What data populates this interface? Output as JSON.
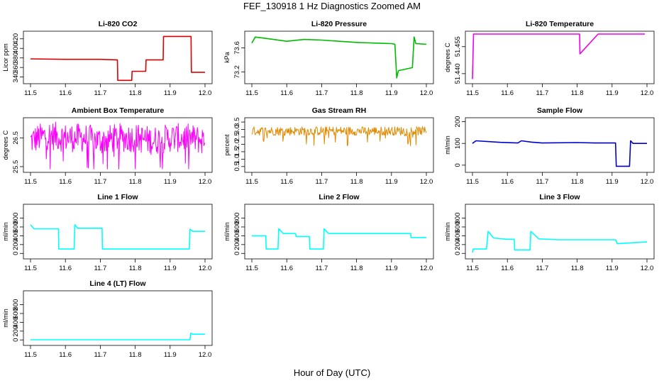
{
  "figure": {
    "title": "FEF_130918  1 Hz Diagnostics Zoomed AM",
    "xlabel": "Hour of Day (UTC)"
  },
  "chart_data": [
    {
      "type": "line",
      "title": "Li-820 CO2",
      "ylabel": "Licor ppm",
      "color": "#dd0000",
      "xlim": [
        11.5,
        12.0
      ],
      "ylim": [
        332,
        430
      ],
      "yticks": [
        "340",
        "360",
        "380",
        "400",
        "420"
      ],
      "xticks": [
        "11.5",
        "11.6",
        "11.7",
        "11.8",
        "11.9",
        "12.0"
      ],
      "x": [
        11.5,
        11.6,
        11.7,
        11.749,
        11.75,
        11.79,
        11.791,
        11.83,
        11.831,
        11.88,
        11.881,
        11.96,
        11.961,
        12.0
      ],
      "y": [
        378,
        377,
        377,
        376,
        333,
        333,
        352,
        352,
        376,
        376,
        425,
        425,
        350,
        350
      ]
    },
    {
      "type": "line",
      "title": "Li-820 Pressure",
      "ylabel": "kPa",
      "color": "#00bb00",
      "xlim": [
        11.5,
        12.0
      ],
      "ylim": [
        73.05,
        73.83
      ],
      "yticks": [
        "73.2",
        "73.6"
      ],
      "xticks": [
        "11.5",
        "11.6",
        "11.7",
        "11.8",
        "11.9",
        "12.0"
      ],
      "x": [
        11.5,
        11.51,
        11.55,
        11.6,
        11.65,
        11.7,
        11.75,
        11.8,
        11.85,
        11.9,
        11.91,
        11.915,
        11.92,
        11.96,
        11.965,
        11.97,
        12.0
      ],
      "y": [
        73.68,
        73.78,
        73.75,
        73.71,
        73.74,
        73.73,
        73.71,
        73.69,
        73.68,
        73.67,
        73.66,
        73.1,
        73.22,
        73.27,
        73.78,
        73.67,
        73.66
      ]
    },
    {
      "type": "line",
      "title": "Li-820 Temperature",
      "ylabel": "degrees C",
      "color": "#ee00ee",
      "xlim": [
        11.5,
        12.0
      ],
      "ylim": [
        51.436,
        51.462
      ],
      "yticks": [
        "51.440",
        "51.455"
      ],
      "xticks": [
        "11.5",
        "11.6",
        "11.7",
        "11.8",
        "11.9",
        "12.0"
      ],
      "x": [
        11.5,
        11.503,
        11.73,
        11.807,
        11.808,
        11.86,
        11.913,
        11.94,
        11.943,
        11.946,
        11.974,
        11.988,
        11.992,
        11.994
      ],
      "y": [
        51.437,
        51.462,
        51.462,
        51.462,
        51.451,
        51.462,
        51.462,
        51.462,
        51.462,
        51.462,
        51.462,
        51.462,
        51.462,
        51.462
      ]
    },
    {
      "type": "line",
      "title": "Ambient Box Temperature",
      "ylabel": "degrees C",
      "color": "#ff00ff",
      "xlim": [
        11.5,
        12.0
      ],
      "ylim": [
        25.4,
        27.1
      ],
      "yticks": [
        "25.5",
        "26.5"
      ],
      "xticks": [
        "11.5",
        "11.6",
        "11.7",
        "11.8",
        "11.9",
        "12.0"
      ],
      "x": [
        11.5,
        11.55,
        11.6,
        11.65,
        11.7,
        11.75,
        11.8,
        11.85,
        11.9,
        11.95,
        12.0
      ],
      "y": [
        26.4,
        26.6,
        26.5,
        26.5,
        26.4,
        26.5,
        26.5,
        26.4,
        26.5,
        26.5,
        26.4
      ],
      "noise": 0.5
    },
    {
      "type": "line",
      "title": "Gas Stream RH",
      "ylabel": "percent",
      "color": "#e08a00",
      "xlim": [
        11.5,
        12.0
      ],
      "ylim": [
        0.3,
        3.6
      ],
      "yticks": [
        "0.5",
        "1.0",
        "1.5",
        "2.0",
        "2.5",
        "3.0",
        "3.5"
      ],
      "xticks": [
        "11.5",
        "11.6",
        "11.7",
        "11.8",
        "11.9",
        "12.0"
      ],
      "x": [
        11.5,
        11.6,
        11.7,
        11.8,
        11.9,
        12.0
      ],
      "y": [
        2.9,
        2.9,
        2.9,
        2.9,
        2.9,
        2.9
      ],
      "noise": 0.3
    },
    {
      "type": "line",
      "title": "Sample Flow",
      "ylabel": "ml/min",
      "color": "#0000cc",
      "xlim": [
        11.5,
        12.0
      ],
      "ylim": [
        -20,
        205
      ],
      "yticks": [
        "0",
        "100",
        "200"
      ],
      "xticks": [
        "11.5",
        "11.6",
        "11.7",
        "11.8",
        "11.9",
        "12.0"
      ],
      "x": [
        11.5,
        11.51,
        11.58,
        11.63,
        11.64,
        11.67,
        11.7,
        11.8,
        11.85,
        11.91,
        11.912,
        11.95,
        11.953,
        11.96,
        12.0
      ],
      "y": [
        100,
        112,
        105,
        102,
        112,
        106,
        102,
        104,
        102,
        102,
        -5,
        -5,
        112,
        100,
        100
      ]
    },
    {
      "type": "line",
      "title": "Line 1 Flow",
      "ylabel": "ml/min",
      "color": "#00ffff",
      "xlim": [
        11.5,
        12.0
      ],
      "ylim": [
        -60,
        1050
      ],
      "yticks": [
        "0",
        "200",
        "400",
        "600",
        "800"
      ],
      "xticks": [
        "11.5",
        "11.6",
        "11.7",
        "11.8",
        "11.9",
        "12.0"
      ],
      "x": [
        11.5,
        11.51,
        11.58,
        11.581,
        11.625,
        11.627,
        11.635,
        11.705,
        11.706,
        11.955,
        11.957,
        11.965,
        12.0
      ],
      "y": [
        650,
        560,
        560,
        100,
        100,
        650,
        570,
        570,
        100,
        100,
        550,
        500,
        500
      ]
    },
    {
      "type": "line",
      "title": "Line 2 Flow",
      "ylabel": "ml/min",
      "color": "#00ffff",
      "xlim": [
        11.5,
        12.0
      ],
      "ylim": [
        -60,
        1050
      ],
      "yticks": [
        "0",
        "200",
        "400",
        "600",
        "800"
      ],
      "xticks": [
        "11.5",
        "11.6",
        "11.7",
        "11.8",
        "11.9",
        "12.0"
      ],
      "x": [
        11.5,
        11.54,
        11.541,
        11.575,
        11.577,
        11.59,
        11.625,
        11.627,
        11.665,
        11.666,
        11.705,
        11.707,
        11.72,
        11.955,
        11.956,
        12.0
      ],
      "y": [
        400,
        400,
        100,
        100,
        560,
        450,
        450,
        380,
        380,
        100,
        100,
        560,
        450,
        450,
        360,
        360
      ]
    },
    {
      "type": "line",
      "title": "Line 3 Flow",
      "ylabel": "ml/min",
      "color": "#00ffff",
      "xlim": [
        11.5,
        12.0
      ],
      "ylim": [
        -60,
        1050
      ],
      "yticks": [
        "0",
        "200",
        "400",
        "600",
        "800"
      ],
      "xticks": [
        "11.5",
        "11.6",
        "11.7",
        "11.8",
        "11.9",
        "12.0"
      ],
      "x": [
        11.5,
        11.502,
        11.54,
        11.545,
        11.56,
        11.6,
        11.62,
        11.621,
        11.665,
        11.667,
        11.69,
        11.75,
        11.9,
        11.91,
        11.915,
        12.0
      ],
      "y": [
        20,
        100,
        100,
        500,
        350,
        320,
        320,
        80,
        80,
        500,
        330,
        310,
        310,
        310,
        220,
        260
      ]
    },
    {
      "type": "line",
      "title": "Line 4 (LT) Flow",
      "ylabel": "ml/min",
      "color": "#00ffff",
      "xlim": [
        11.5,
        12.0
      ],
      "ylim": [
        -60,
        1050
      ],
      "yticks": [
        "0",
        "200",
        "400",
        "600",
        "800"
      ],
      "xticks": [
        "11.5",
        "11.6",
        "11.7",
        "11.8",
        "11.9",
        "12.0"
      ],
      "x": [
        11.5,
        11.6,
        11.7,
        11.8,
        11.9,
        11.957,
        11.959,
        11.965,
        12.0
      ],
      "y": [
        5,
        5,
        5,
        5,
        5,
        5,
        150,
        130,
        130
      ]
    }
  ]
}
